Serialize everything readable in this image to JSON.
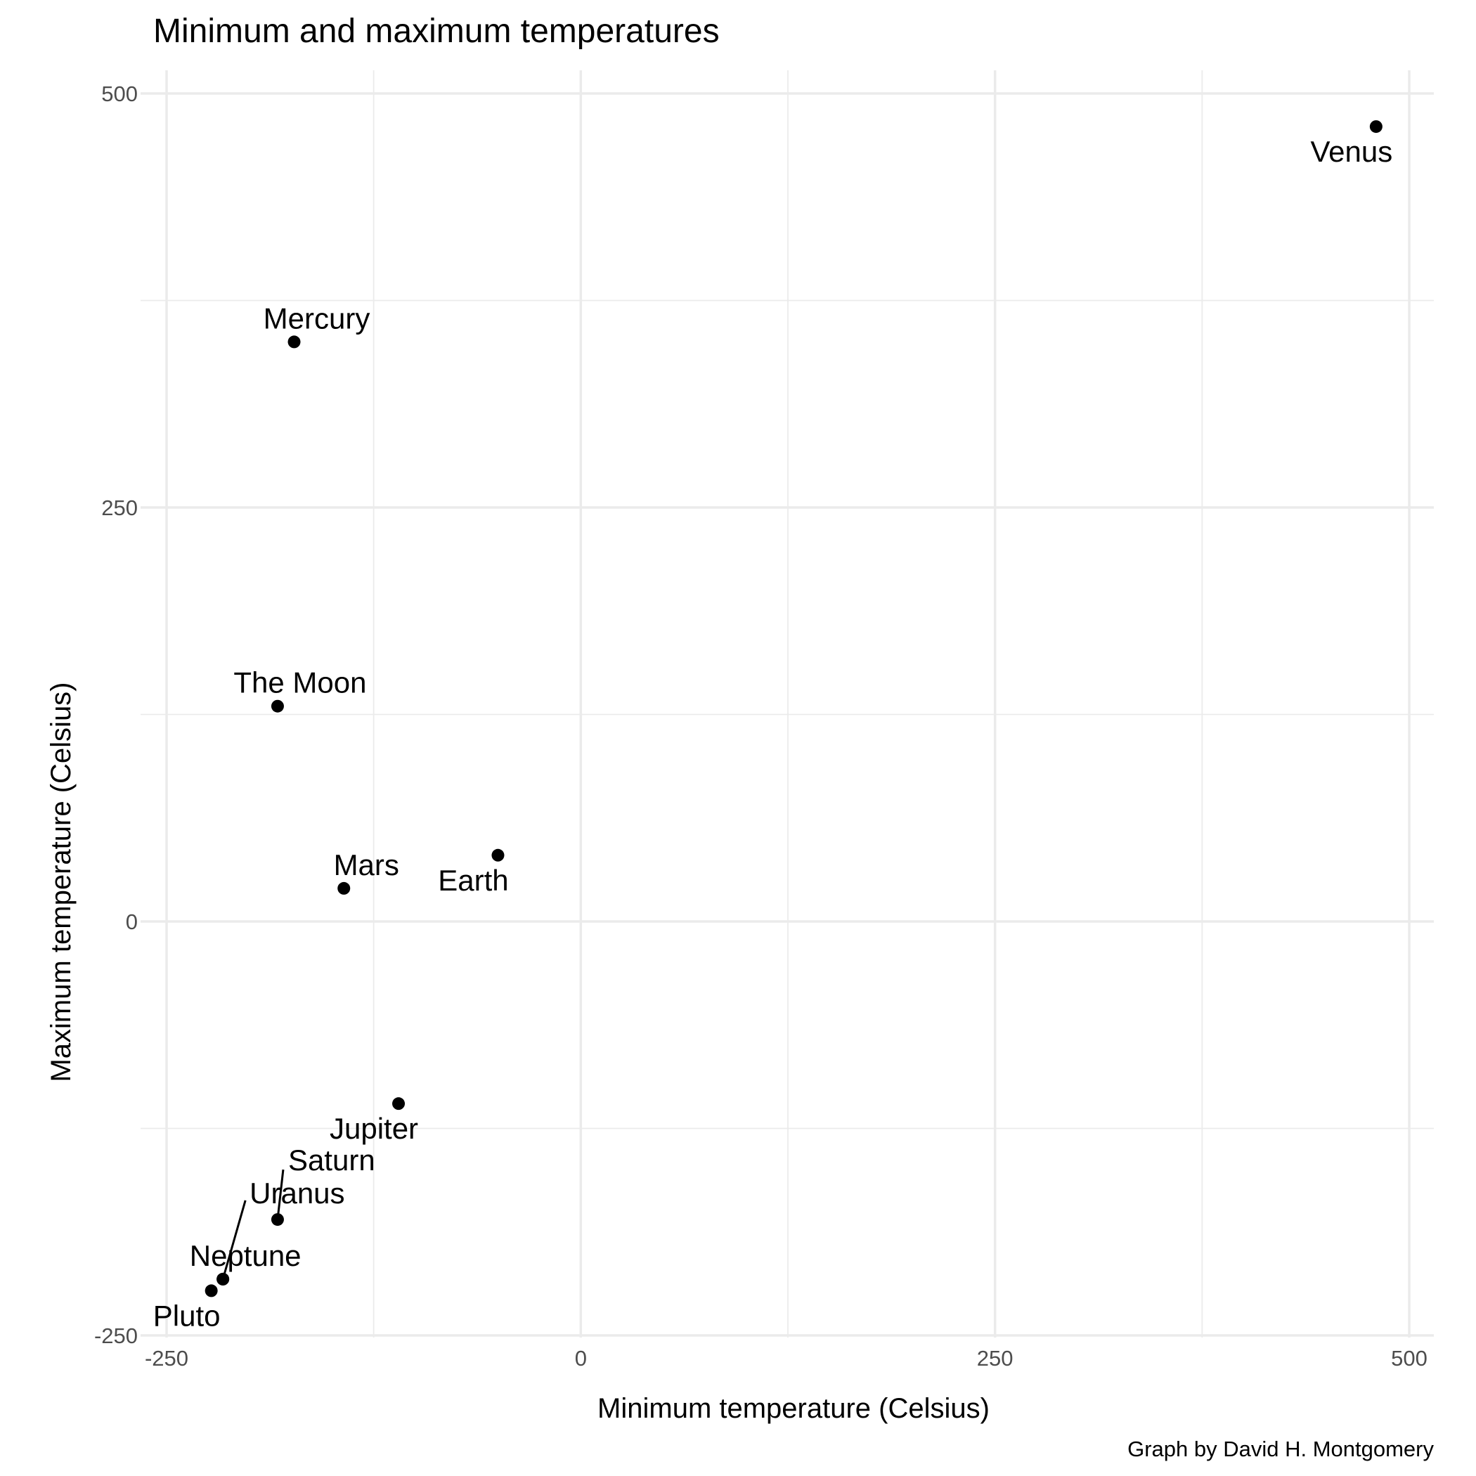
{
  "chart_data": {
    "type": "scatter",
    "title": "Minimum and maximum temperatures",
    "xlabel": "Minimum temperature (Celsius)",
    "ylabel": "Maximum temperature (Celsius)",
    "caption": "Graph by David H. Montgomery",
    "xlim": [
      -250,
      500
    ],
    "ylim": [
      -250,
      500
    ],
    "xticks": [
      -250,
      0,
      250,
      500
    ],
    "yticks": [
      -250,
      0,
      250,
      500
    ],
    "xtick_labels": [
      "-250",
      "0",
      "250",
      "500"
    ],
    "ytick_labels": [
      "-250",
      "0",
      "250",
      "500"
    ],
    "grid": true,
    "point_color": "#000000",
    "points": [
      {
        "label": "Venus",
        "x": 480,
        "y": 480,
        "label_pos": "below"
      },
      {
        "label": "Mercury",
        "x": -173,
        "y": 350,
        "label_pos": "above"
      },
      {
        "label": "The Moon",
        "x": -183,
        "y": 130,
        "label_pos": "above"
      },
      {
        "label": "Mars",
        "x": -143,
        "y": 20,
        "label_pos": "above"
      },
      {
        "label": "Earth",
        "x": -50,
        "y": 40,
        "label_pos": "below-left"
      },
      {
        "label": "Jupiter",
        "x": -110,
        "y": -110,
        "label_pos": "below-left"
      },
      {
        "label": "Saturn",
        "x": -183,
        "y": -180,
        "label_pos": "leader-up-right"
      },
      {
        "label": "Uranus",
        "x": -216,
        "y": -216,
        "label_pos": "leader-up-right-far"
      },
      {
        "label": "Neptune",
        "x": -216,
        "y": -216,
        "label_pos": "above"
      },
      {
        "label": "Pluto",
        "x": -223,
        "y": -223,
        "label_pos": "below-left"
      }
    ]
  }
}
